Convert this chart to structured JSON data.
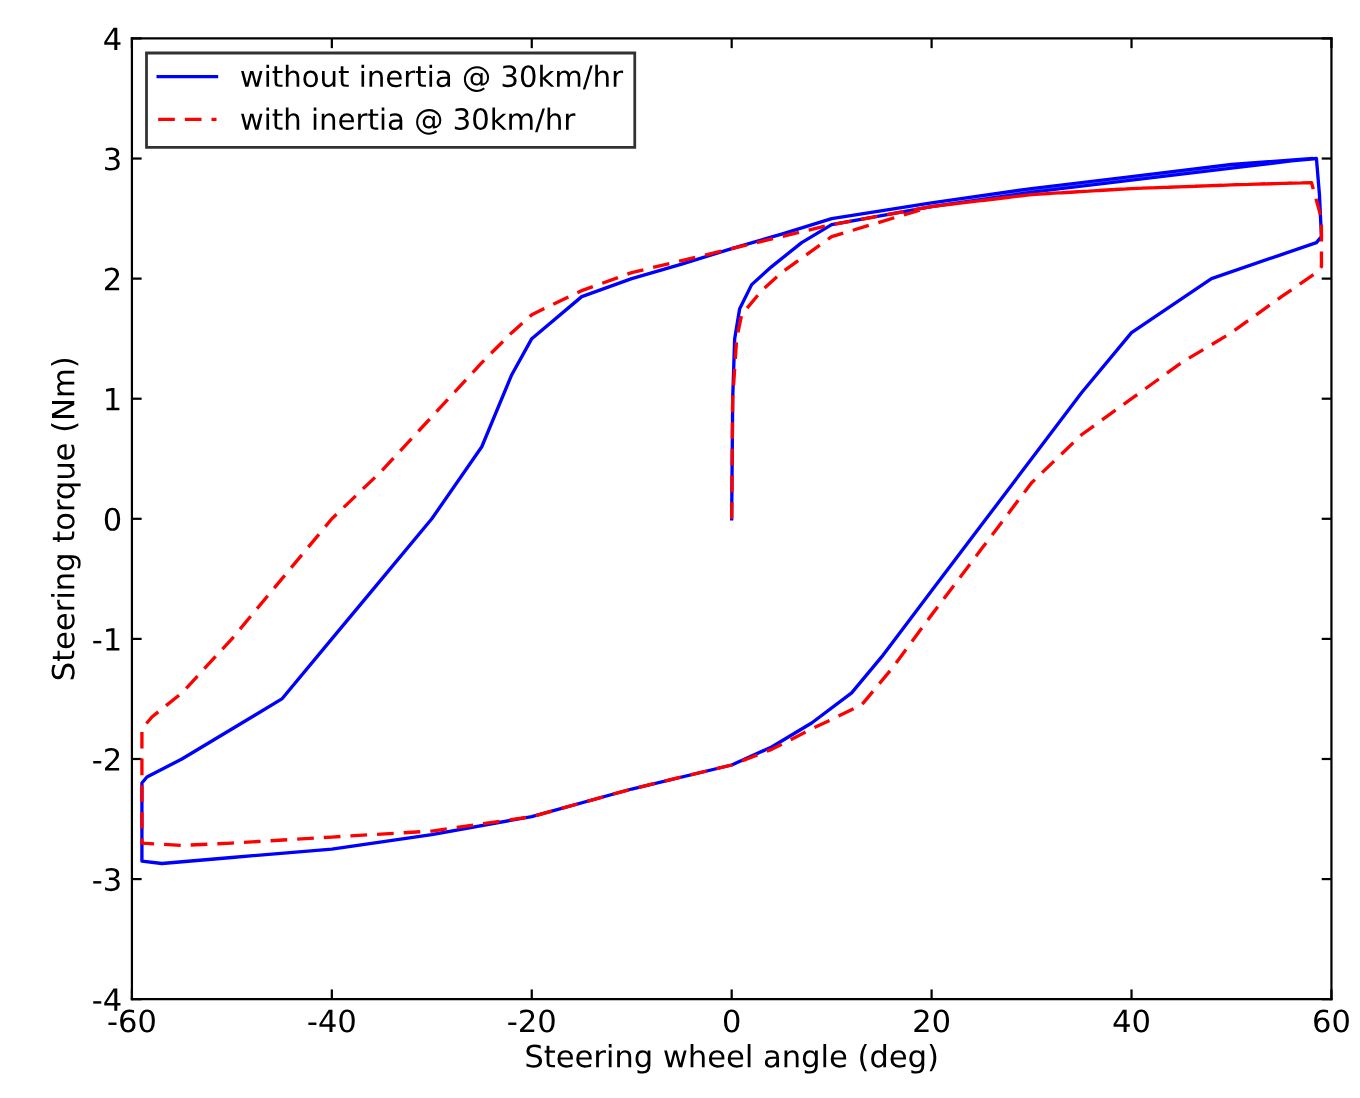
{
  "chart_data": {
    "type": "line",
    "xlabel": "Steering wheel angle (deg)",
    "ylabel": "Steering torque (Nm)",
    "xlim": [
      -60,
      60
    ],
    "ylim": [
      -4,
      4
    ],
    "xticks": [
      -60,
      -40,
      -20,
      0,
      20,
      40,
      60
    ],
    "yticks": [
      -4,
      -3,
      -2,
      -1,
      0,
      1,
      2,
      3,
      4
    ],
    "grid": false,
    "legend": "top left",
    "series": [
      {
        "name": "without inertia @ 30km/hr",
        "color": "#0000ff",
        "line_style": "solid",
        "x": [
          0,
          0.1,
          0.3,
          0.8,
          2,
          4,
          7,
          10,
          20,
          30,
          40,
          50,
          56,
          58.5,
          58.8,
          59,
          58.5,
          55,
          48,
          40,
          35,
          30,
          25,
          20,
          15,
          12,
          8,
          4,
          0,
          -10,
          -20,
          -30,
          -40,
          -50,
          -57,
          -59,
          -59,
          -58.5,
          -55,
          -50,
          -45,
          -40,
          -35,
          -30,
          -25,
          -22,
          -20,
          -15,
          -10,
          -5,
          0,
          5,
          10,
          20,
          30,
          40,
          50,
          58
        ],
        "values": [
          0,
          1.0,
          1.5,
          1.75,
          1.95,
          2.1,
          2.3,
          2.45,
          2.6,
          2.72,
          2.82,
          2.92,
          2.98,
          3.0,
          2.7,
          2.35,
          2.3,
          2.2,
          2.0,
          1.55,
          1.05,
          0.5,
          -0.05,
          -0.6,
          -1.15,
          -1.45,
          -1.7,
          -1.9,
          -2.05,
          -2.25,
          -2.48,
          -2.63,
          -2.75,
          -2.82,
          -2.87,
          -2.85,
          -2.2,
          -2.15,
          -2.0,
          -1.75,
          -1.5,
          -1.0,
          -0.5,
          0.0,
          0.6,
          1.2,
          1.5,
          1.85,
          2.0,
          2.12,
          2.25,
          2.37,
          2.5,
          2.63,
          2.75,
          2.85,
          2.95,
          3.0
        ]
      },
      {
        "name": "with inertia @ 30km/hr",
        "color": "#ff0000",
        "line_style": "dashed",
        "x": [
          0,
          0.1,
          0.5,
          1,
          3,
          5,
          10,
          20,
          30,
          40,
          50,
          58,
          59,
          59,
          58.5,
          55,
          50,
          45,
          40,
          35,
          30,
          25,
          20,
          16,
          13,
          8,
          4,
          0,
          -10,
          -20,
          -30,
          -40,
          -50,
          -55,
          -59,
          -59,
          -58,
          -55,
          -50,
          -45,
          -40,
          -35,
          -30,
          -25,
          -22,
          -20,
          -15,
          -10,
          -5,
          0,
          5,
          10,
          20,
          30,
          40,
          50,
          58
        ],
        "values": [
          0,
          1.0,
          1.5,
          1.7,
          1.9,
          2.05,
          2.35,
          2.6,
          2.7,
          2.75,
          2.78,
          2.8,
          2.5,
          2.1,
          2.05,
          1.85,
          1.55,
          1.3,
          1.0,
          0.7,
          0.3,
          -0.25,
          -0.8,
          -1.25,
          -1.55,
          -1.75,
          -1.92,
          -2.05,
          -2.25,
          -2.48,
          -2.6,
          -2.65,
          -2.7,
          -2.72,
          -2.7,
          -1.75,
          -1.65,
          -1.45,
          -1.0,
          -0.5,
          0.0,
          0.4,
          0.85,
          1.3,
          1.55,
          1.7,
          1.9,
          2.05,
          2.15,
          2.25,
          2.35,
          2.45,
          2.6,
          2.7,
          2.75,
          2.78,
          2.8
        ]
      }
    ]
  }
}
